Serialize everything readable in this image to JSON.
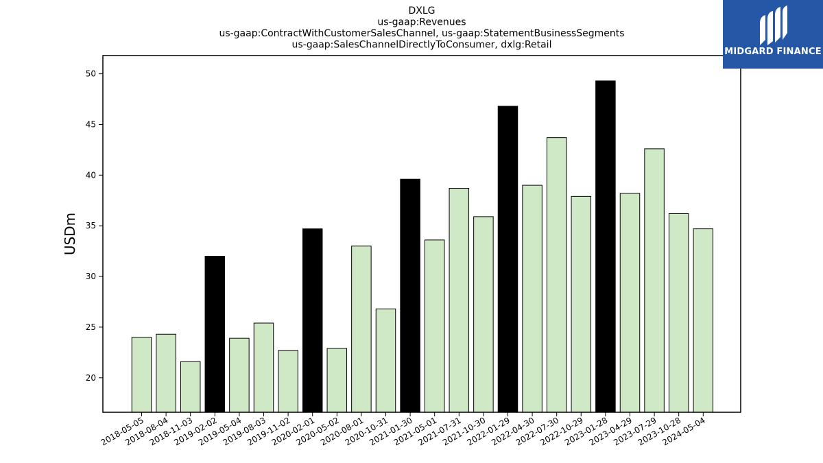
{
  "chart_data": {
    "type": "bar",
    "title_lines": [
      "DXLG",
      "us-gaap:Revenues",
      "us-gaap:ContractWithCustomerSalesChannel, us-gaap:StatementBusinessSegments",
      "us-gaap:SalesChannelDirectlyToConsumer, dxlg:Retail"
    ],
    "ylabel": "USDm",
    "xlabel": "",
    "ylim": [
      16.6,
      51.8
    ],
    "yticks": [
      20,
      25,
      30,
      35,
      40,
      45,
      50
    ],
    "categories": [
      "2018-05-05",
      "2018-08-04",
      "2018-11-03",
      "2019-02-02",
      "2019-05-04",
      "2019-08-03",
      "2019-11-02",
      "2020-02-01",
      "2020-05-02",
      "2020-08-01",
      "2020-10-31",
      "2021-01-30",
      "2021-05-01",
      "2021-07-31",
      "2021-10-30",
      "2022-01-29",
      "2022-04-30",
      "2022-07-30",
      "2022-10-29",
      "2023-01-28",
      "2023-04-29",
      "2023-07-29",
      "2023-10-28",
      "2024-05-04"
    ],
    "values": [
      24.0,
      24.3,
      21.6,
      32.0,
      23.9,
      25.4,
      22.7,
      34.7,
      22.9,
      33.0,
      26.8,
      39.6,
      33.6,
      38.7,
      35.9,
      46.8,
      39.0,
      43.7,
      37.9,
      49.3,
      38.2,
      42.6,
      36.2,
      34.7
    ],
    "highlight": [
      false,
      false,
      false,
      true,
      false,
      false,
      false,
      true,
      false,
      false,
      false,
      true,
      false,
      false,
      false,
      true,
      false,
      false,
      false,
      true,
      false,
      false,
      false,
      false
    ],
    "colors": {
      "normal": "#cfe8c6",
      "highlight": "#000000",
      "edge": "#000000"
    },
    "grid": false
  },
  "brand": {
    "name": "MIDGARD FINANCE",
    "icon": "midgard-logo-icon",
    "background": "#2557a7"
  }
}
